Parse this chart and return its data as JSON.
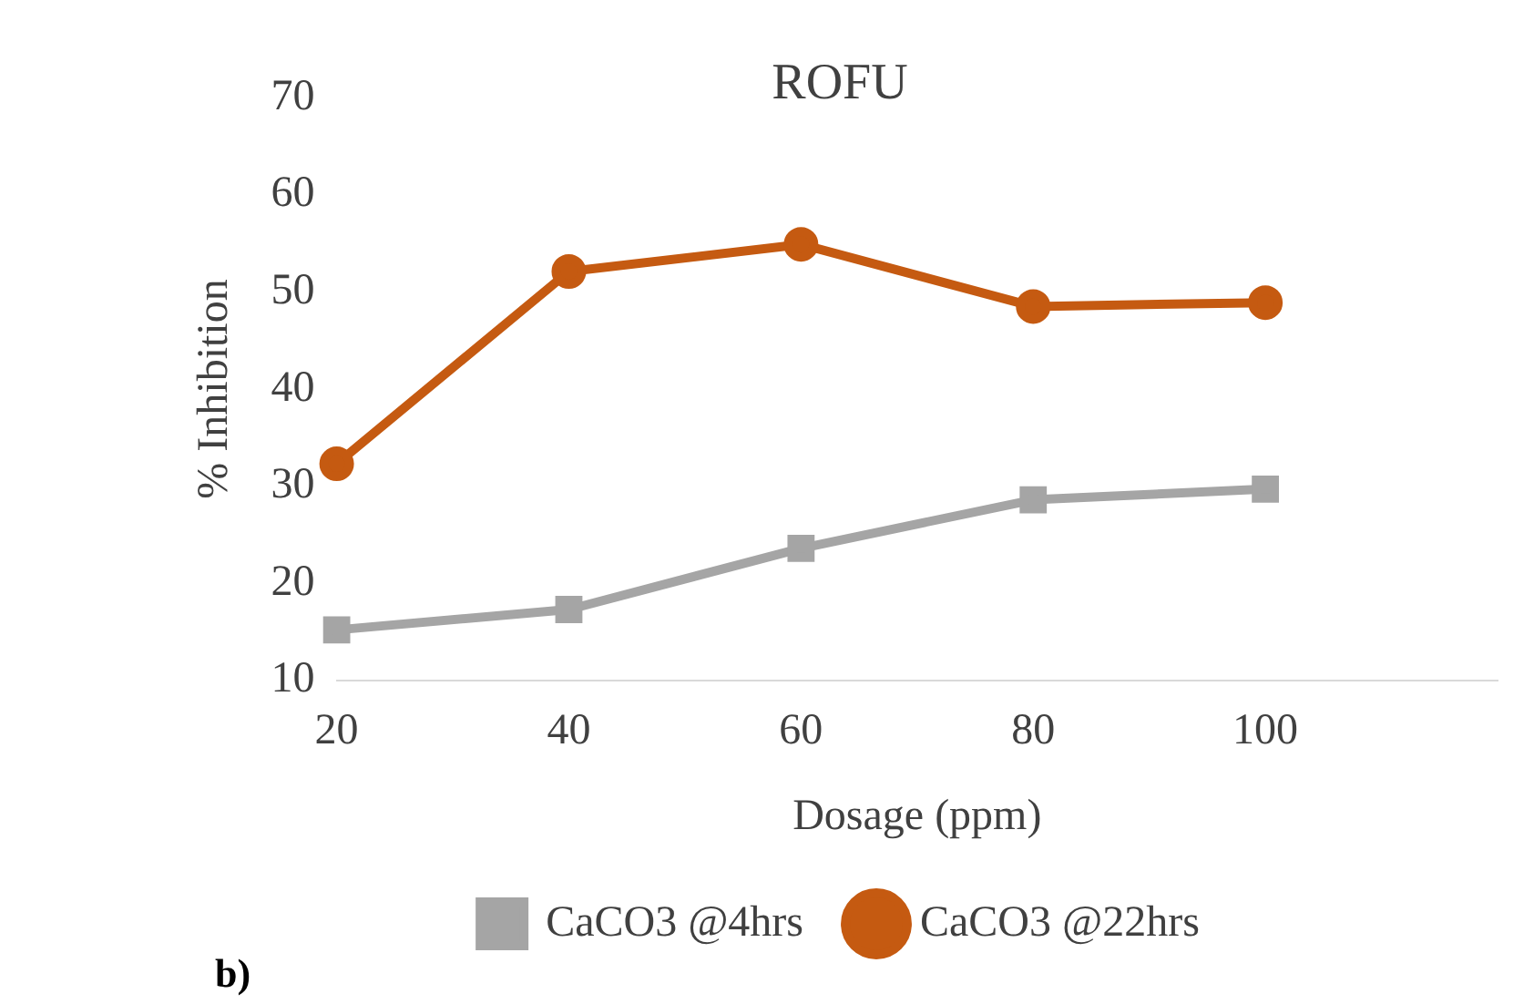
{
  "chart_data": {
    "type": "line",
    "title": "ROFU",
    "xlabel": "Dosage (ppm)",
    "ylabel": "% Inhibition",
    "categories": [
      "20",
      "40",
      "60",
      "80",
      "100",
      null
    ],
    "series": [
      {
        "name": "CaCO3 @4hrs",
        "color": "#a5a5a5",
        "marker": "square",
        "values": [
          15.2,
          17.3,
          23.6,
          28.6,
          29.7,
          null
        ]
      },
      {
        "name": "CaCO3 @22hrs",
        "color": "#c55a11",
        "marker": "circle",
        "values": [
          32.3,
          52.1,
          54.9,
          48.5,
          48.9,
          null
        ]
      }
    ],
    "ylim": [
      10,
      70
    ],
    "yticks": [
      10,
      20,
      30,
      40,
      50,
      60,
      70
    ],
    "grid": false,
    "legend": "bottom",
    "line_style": "solid",
    "annotations": [
      "b)"
    ]
  }
}
